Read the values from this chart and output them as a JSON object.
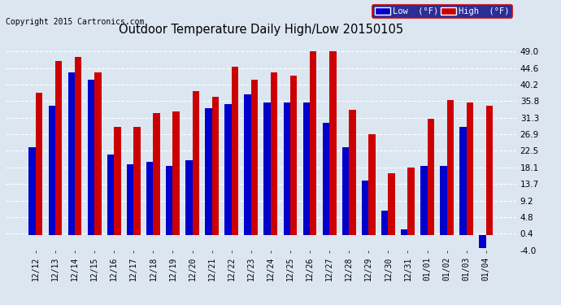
{
  "title": "Outdoor Temperature Daily High/Low 20150105",
  "copyright": "Copyright 2015 Cartronics.com",
  "categories": [
    "12/12",
    "12/13",
    "12/14",
    "12/15",
    "12/16",
    "12/17",
    "12/18",
    "12/19",
    "12/20",
    "12/21",
    "12/22",
    "12/23",
    "12/24",
    "12/25",
    "12/26",
    "12/27",
    "12/28",
    "12/29",
    "12/30",
    "12/31",
    "01/01",
    "01/02",
    "01/03",
    "01/04"
  ],
  "low": [
    23.5,
    34.5,
    43.5,
    41.5,
    21.5,
    19.0,
    19.5,
    18.5,
    20.0,
    34.0,
    35.0,
    37.5,
    35.5,
    35.5,
    35.5,
    30.0,
    23.5,
    14.5,
    6.5,
    1.5,
    18.5,
    18.5,
    29.0,
    -3.5
  ],
  "high": [
    38.0,
    46.5,
    47.5,
    43.5,
    29.0,
    29.0,
    32.5,
    33.0,
    38.5,
    37.0,
    45.0,
    41.5,
    43.5,
    42.5,
    49.0,
    49.0,
    33.5,
    27.0,
    16.5,
    18.0,
    31.0,
    36.0,
    35.5,
    34.5
  ],
  "low_color": "#0000cc",
  "high_color": "#cc0000",
  "bg_color": "#dce6f1",
  "plot_bg_color": "#dce6f1",
  "grid_color": "#ffffff",
  "ylim": [
    -4.0,
    53.0
  ],
  "yticks": [
    -4.0,
    0.4,
    4.8,
    9.2,
    13.7,
    18.1,
    22.5,
    26.9,
    31.3,
    35.8,
    40.2,
    44.6,
    49.0
  ],
  "legend_low_label": "Low  (°F)",
  "legend_high_label": "High  (°F)",
  "bar_width": 0.35,
  "figsize": [
    6.9,
    3.75
  ],
  "dpi": 100
}
